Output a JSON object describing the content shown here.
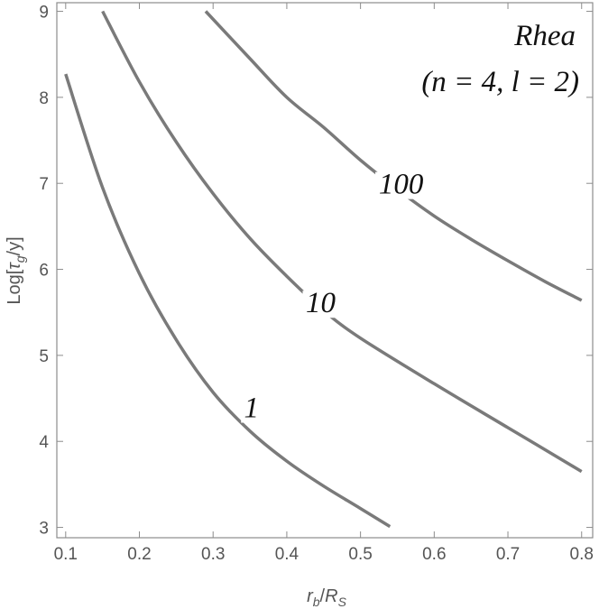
{
  "chart_data": {
    "type": "line",
    "xlabel": {
      "base": "r",
      "sub": "b",
      "sep": "/",
      "base2": "R",
      "sub2": "S"
    },
    "ylabel": {
      "pre": "Log[",
      "base": "τ",
      "sub": "g",
      "post": "/y]"
    },
    "xlim": [
      0.088,
      0.815
    ],
    "ylim": [
      2.88,
      9.1
    ],
    "x_ticks": [
      0.1,
      0.2,
      0.3,
      0.4,
      0.5,
      0.6,
      0.7,
      0.8
    ],
    "x_tick_labels": [
      "0.1",
      "0.2",
      "0.3",
      "0.4",
      "0.5",
      "0.6",
      "0.7",
      "0.8"
    ],
    "y_ticks": [
      3,
      4,
      5,
      6,
      7,
      8,
      9
    ],
    "y_tick_labels": [
      "3",
      "4",
      "5",
      "6",
      "7",
      "8",
      "9"
    ],
    "annotation": {
      "line1": "Rhea",
      "line2": "(n = 4,  l = 2)"
    },
    "series": [
      {
        "label": "1",
        "points": [
          [
            0.1,
            8.27
          ],
          [
            0.15,
            6.95
          ],
          [
            0.2,
            5.95
          ],
          [
            0.25,
            5.18
          ],
          [
            0.3,
            4.57
          ],
          [
            0.35,
            4.12
          ],
          [
            0.4,
            3.77
          ],
          [
            0.45,
            3.48
          ],
          [
            0.5,
            3.22
          ],
          [
            0.54,
            3.01
          ]
        ],
        "label_at": [
          0.352,
          4.28
        ]
      },
      {
        "label": "10",
        "points": [
          [
            0.15,
            9.0
          ],
          [
            0.2,
            8.18
          ],
          [
            0.25,
            7.48
          ],
          [
            0.3,
            6.88
          ],
          [
            0.35,
            6.36
          ],
          [
            0.4,
            5.92
          ],
          [
            0.45,
            5.52
          ],
          [
            0.5,
            5.2
          ],
          [
            0.6,
            4.67
          ],
          [
            0.7,
            4.16
          ],
          [
            0.8,
            3.65
          ]
        ],
        "label_at": [
          0.446,
          5.5
        ]
      },
      {
        "label": "100",
        "points": [
          [
            0.29,
            9.0
          ],
          [
            0.35,
            8.45
          ],
          [
            0.4,
            8.0
          ],
          [
            0.45,
            7.65
          ],
          [
            0.5,
            7.27
          ],
          [
            0.55,
            6.93
          ],
          [
            0.6,
            6.62
          ],
          [
            0.65,
            6.35
          ],
          [
            0.7,
            6.1
          ],
          [
            0.75,
            5.86
          ],
          [
            0.8,
            5.64
          ]
        ],
        "label_at": [
          0.555,
          6.88
        ]
      }
    ]
  }
}
